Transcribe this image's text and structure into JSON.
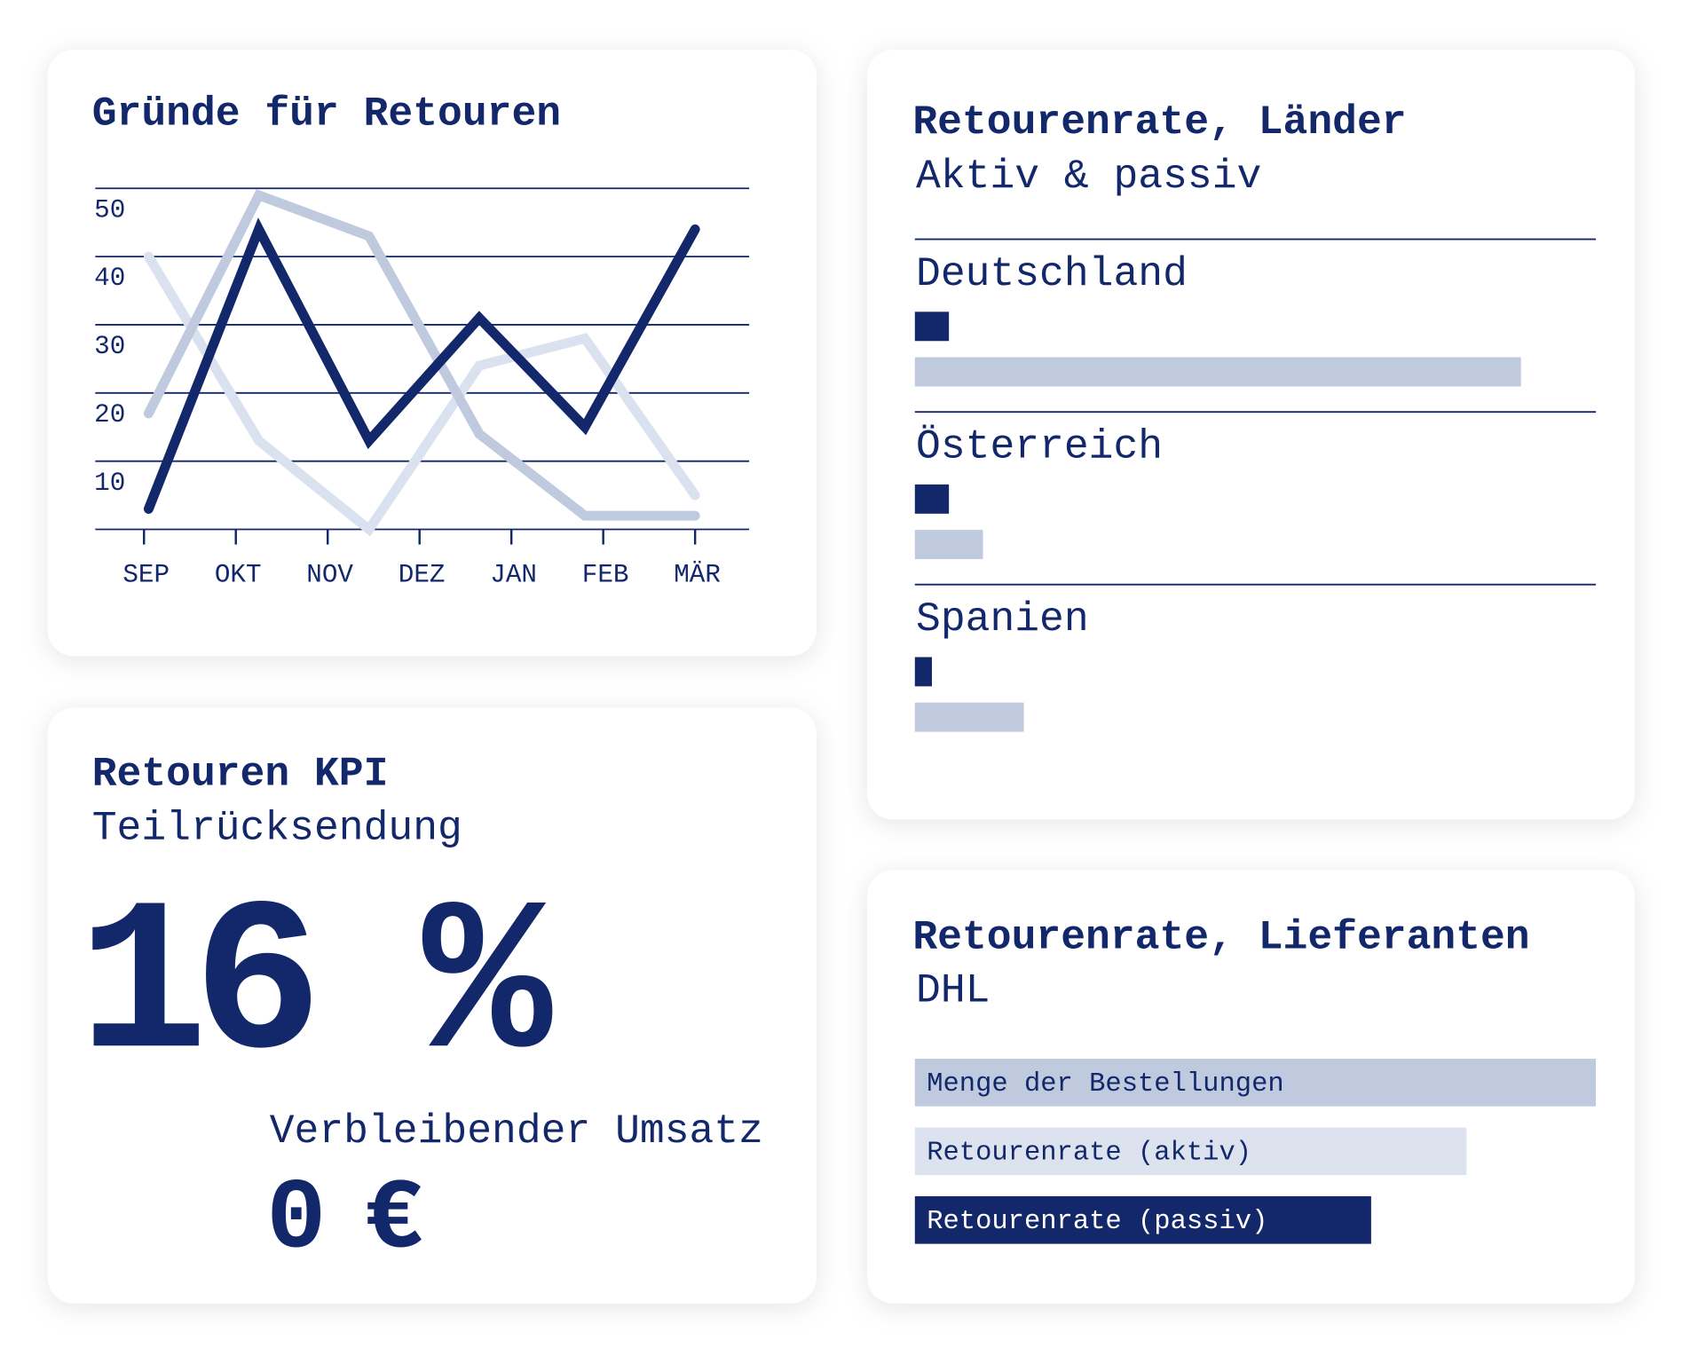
{
  "chart_data": [
    {
      "type": "line",
      "title": "Gründe für Retouren",
      "x": [
        0.05,
        1.25,
        2.45,
        3.65,
        4.8,
        6
      ],
      "xlim": [
        0,
        6
      ],
      "xticks": [
        {
          "value": 0,
          "label": "SEP"
        },
        {
          "value": 1,
          "label": "OKT"
        },
        {
          "value": 2,
          "label": "NOV"
        },
        {
          "value": 3,
          "label": "DEZ"
        },
        {
          "value": 4,
          "label": "JAN"
        },
        {
          "value": 5,
          "label": "FEB"
        },
        {
          "value": 6,
          "label": "MÄR"
        }
      ],
      "ylim": [
        0,
        50
      ],
      "yticks": [
        10,
        20,
        30,
        40,
        50
      ],
      "grid": true,
      "series": [
        {
          "color": "#dbe2ef",
          "values": [
            40,
            13,
            0,
            24,
            28,
            5
          ]
        },
        {
          "color": "#c0cadf",
          "values": [
            17,
            49,
            43,
            14,
            2,
            2
          ]
        },
        {
          "color": "#13286b",
          "values": [
            3,
            44,
            13,
            31,
            15,
            44
          ]
        }
      ]
    },
    {
      "type": "bar",
      "orientation": "horizontal",
      "title": "Retourenrate, Länder",
      "subtitle": "Aktiv & passiv",
      "categories": [
        "Deutschland",
        "Österreich",
        "Spanien"
      ],
      "xlim": [
        0,
        100
      ],
      "series": [
        {
          "color": "#13286b",
          "values": [
            5,
            5,
            2.5
          ]
        },
        {
          "color": "#c0cadf",
          "values": [
            89,
            10,
            16
          ]
        }
      ]
    },
    {
      "type": "bar",
      "orientation": "horizontal",
      "title": "Retourenrate, Lieferanten",
      "subtitle": "DHL",
      "categories": [
        "Menge der Bestellungen",
        "Retourenrate (aktiv)",
        "Retourenrate (passiv)"
      ],
      "values": [
        100,
        81,
        67
      ],
      "colors": [
        "#c0cadf",
        "#dce3ef",
        "#13286b"
      ],
      "xlim": [
        0,
        100
      ]
    }
  ],
  "kpi": {
    "title": "Retouren KPI",
    "subtitle": "Teilrücksendung",
    "value": "16 %",
    "remaining_title": "Verbleibender Umsatz",
    "remaining": "0 €"
  }
}
